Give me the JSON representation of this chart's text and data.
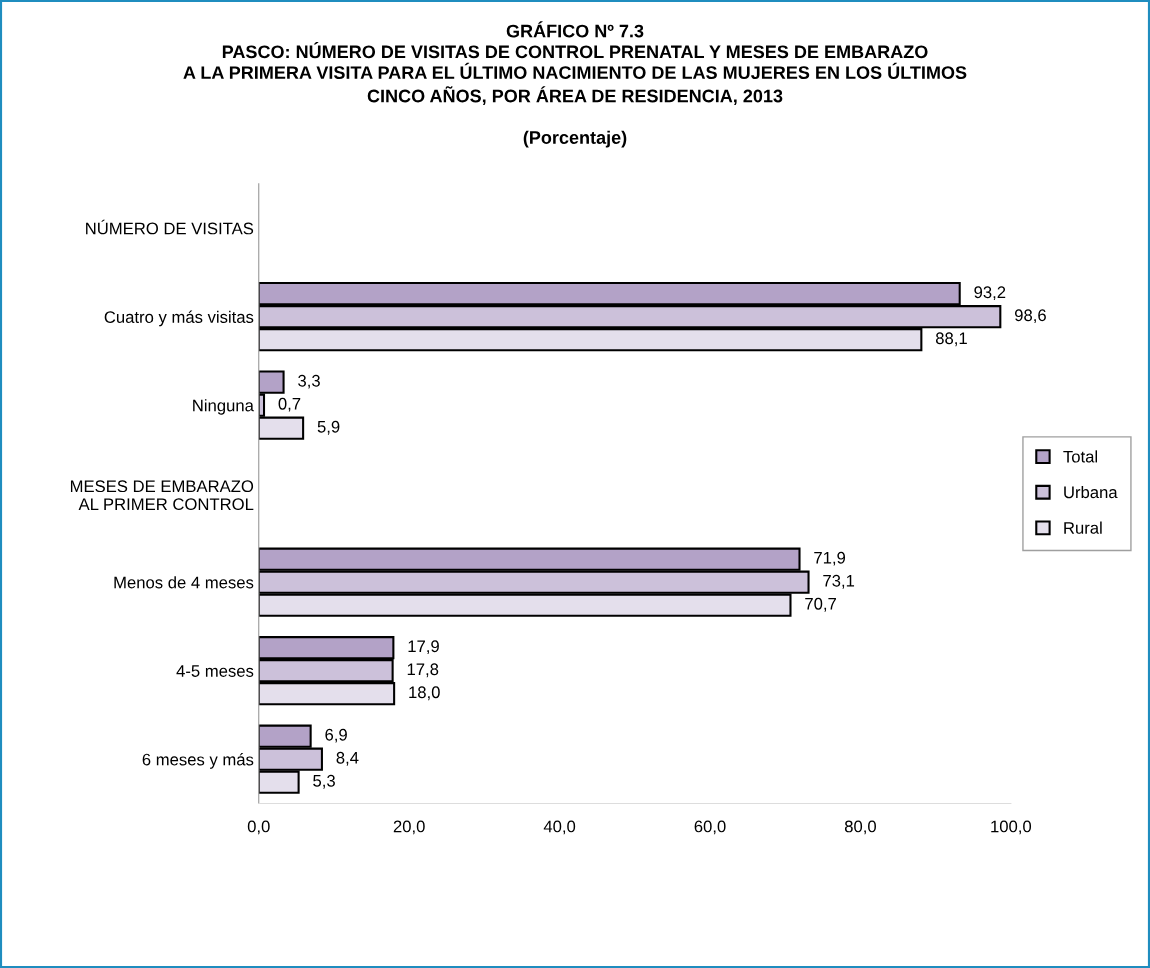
{
  "chart_data": {
    "type": "bar",
    "orientation": "horizontal",
    "title": "GRÁFICO Nº 7.3\nPASCO: NÚMERO DE VISITAS DE CONTROL PRENATAL Y MESES DE EMBARAZO\nA LA PRIMERA VISITA PARA EL ÚLTIMO NACIMIENTO DE LAS MUJERES EN LOS ÚLTIMOS\nCINCO AÑOS, POR ÁREA DE RESIDENCIA, 2013",
    "subtitle": "(Porcentaje)",
    "categories": [
      "NÚMERO DE VISITAS",
      "Cuatro y más visitas",
      "Ninguna",
      "MESES DE EMBARAZO\nAL PRIMER CONTROL",
      "Menos de 4 meses",
      "4-5 meses",
      "6 meses y más"
    ],
    "series": [
      {
        "name": "Total",
        "color": "#b3a2c7",
        "values": [
          null,
          93.2,
          3.3,
          null,
          71.9,
          17.9,
          6.9
        ],
        "value_labels": [
          null,
          "93,2",
          "3,3",
          null,
          "71,9",
          "17,9",
          "6,9"
        ]
      },
      {
        "name": "Urbana",
        "color": "#ccc1da",
        "values": [
          null,
          98.6,
          0.7,
          null,
          73.1,
          17.8,
          8.4
        ],
        "value_labels": [
          null,
          "98,6",
          "0,7",
          null,
          "73,1",
          "17,8",
          "8,4"
        ]
      },
      {
        "name": "Rural",
        "color": "#e4dfec",
        "values": [
          null,
          88.1,
          5.9,
          null,
          70.7,
          18.0,
          5.3
        ],
        "value_labels": [
          null,
          "88,1",
          "5,9",
          null,
          "70,7",
          "18,0",
          "5,3"
        ]
      }
    ],
    "xlim": [
      0,
      100
    ],
    "xticks": [
      {
        "value": 0,
        "label": "0,0"
      },
      {
        "value": 20,
        "label": "20,0"
      },
      {
        "value": 40,
        "label": "40,0"
      },
      {
        "value": 60,
        "label": "60,0"
      },
      {
        "value": 80,
        "label": "80,0"
      },
      {
        "value": 100,
        "label": "100,0"
      }
    ],
    "grid": false,
    "legend": "right"
  }
}
